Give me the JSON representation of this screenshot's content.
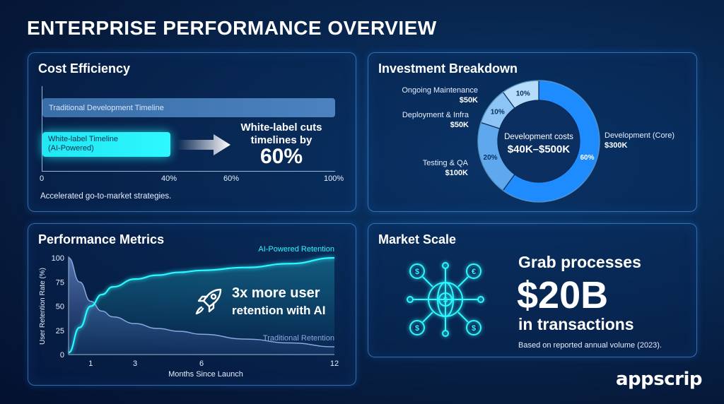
{
  "page": {
    "title": "ENTERPRISE PERFORMANCE OVERVIEW",
    "brand": "appscrip"
  },
  "cost": {
    "title": "Cost Efficiency",
    "trad_label": "Traditional Development Timeline",
    "wl_label_1": "White-label Timeline",
    "wl_label_2": "(AI-Powered)",
    "ticks": [
      "0",
      "40%",
      "60%",
      "100%"
    ],
    "cut_text_1": "White-label cuts",
    "cut_text_2": "timelines by",
    "cut_pct": "60%",
    "note": "Accelerated go-to-market strategies."
  },
  "invest": {
    "title": "Investment Breakdown",
    "center_1": "Development costs",
    "center_2": "$40K–$500K",
    "labels": [
      {
        "name": "Ongoing Maintenance",
        "value": "$50K"
      },
      {
        "name": "Deployment & Infra",
        "value": "$50K"
      },
      {
        "name": "Testing & QA",
        "value": "$100K"
      },
      {
        "name": "Development (Core)",
        "value": "$300K"
      }
    ],
    "pcts": [
      "10%",
      "10%",
      "20%",
      "60%"
    ]
  },
  "perf": {
    "title": "Performance Metrics",
    "callout_1": "3x more user",
    "callout_2": "retention with AI",
    "ylabel": "User Retention Rate (%)",
    "xlabel": "Months Since Launch",
    "series_ai": "AI-Powered Retention",
    "series_trad": "Traditional Retention"
  },
  "market": {
    "title": "Market Scale",
    "line1": "Grab processes",
    "line2": "$20B",
    "line3": "in transactions",
    "note": "Based on reported annual volume (2023)."
  },
  "colors": {
    "accent": "#2df7ff",
    "bar_trad": "#4b82bf",
    "donut_main": "#1e8cff",
    "donut_light": "#a9d8ff"
  },
  "chart_data": [
    {
      "type": "bar",
      "title": "Cost Efficiency",
      "categories": [
        "Traditional Development Timeline",
        "White-label Timeline (AI-Powered)"
      ],
      "values": [
        100,
        40
      ],
      "xlim": [
        0,
        100
      ],
      "ticks": [
        "0",
        "40%",
        "60%",
        "100%"
      ]
    },
    {
      "type": "pie",
      "title": "Investment Breakdown",
      "categories": [
        "Development (Core)",
        "Testing & QA",
        "Deployment & Infra",
        "Ongoing Maintenance"
      ],
      "values": [
        60,
        20,
        10,
        10
      ],
      "amounts": [
        "$300K",
        "$100K",
        "$50K",
        "$50K"
      ]
    },
    {
      "type": "area",
      "title": "Performance Metrics",
      "xlabel": "Months Since Launch",
      "ylabel": "User Retention Rate (%)",
      "xlim": [
        0,
        12
      ],
      "ylim": [
        0,
        100
      ],
      "xticks": [
        1,
        3,
        6,
        12
      ],
      "yticks": [
        0,
        25,
        50,
        75,
        100
      ],
      "series": [
        {
          "name": "AI-Powered Retention",
          "x": [
            0,
            0.5,
            1,
            1.5,
            2,
            3,
            4,
            5,
            6,
            8,
            10,
            12
          ],
          "values": [
            2,
            28,
            50,
            62,
            70,
            78,
            82,
            85,
            87,
            90,
            94,
            100
          ]
        },
        {
          "name": "Traditional Retention",
          "x": [
            0,
            0.5,
            1,
            1.5,
            2,
            3,
            4,
            5,
            6,
            8,
            10,
            12
          ],
          "values": [
            100,
            75,
            55,
            45,
            39,
            32,
            27,
            24,
            21,
            16,
            12,
            8
          ]
        }
      ]
    }
  ]
}
